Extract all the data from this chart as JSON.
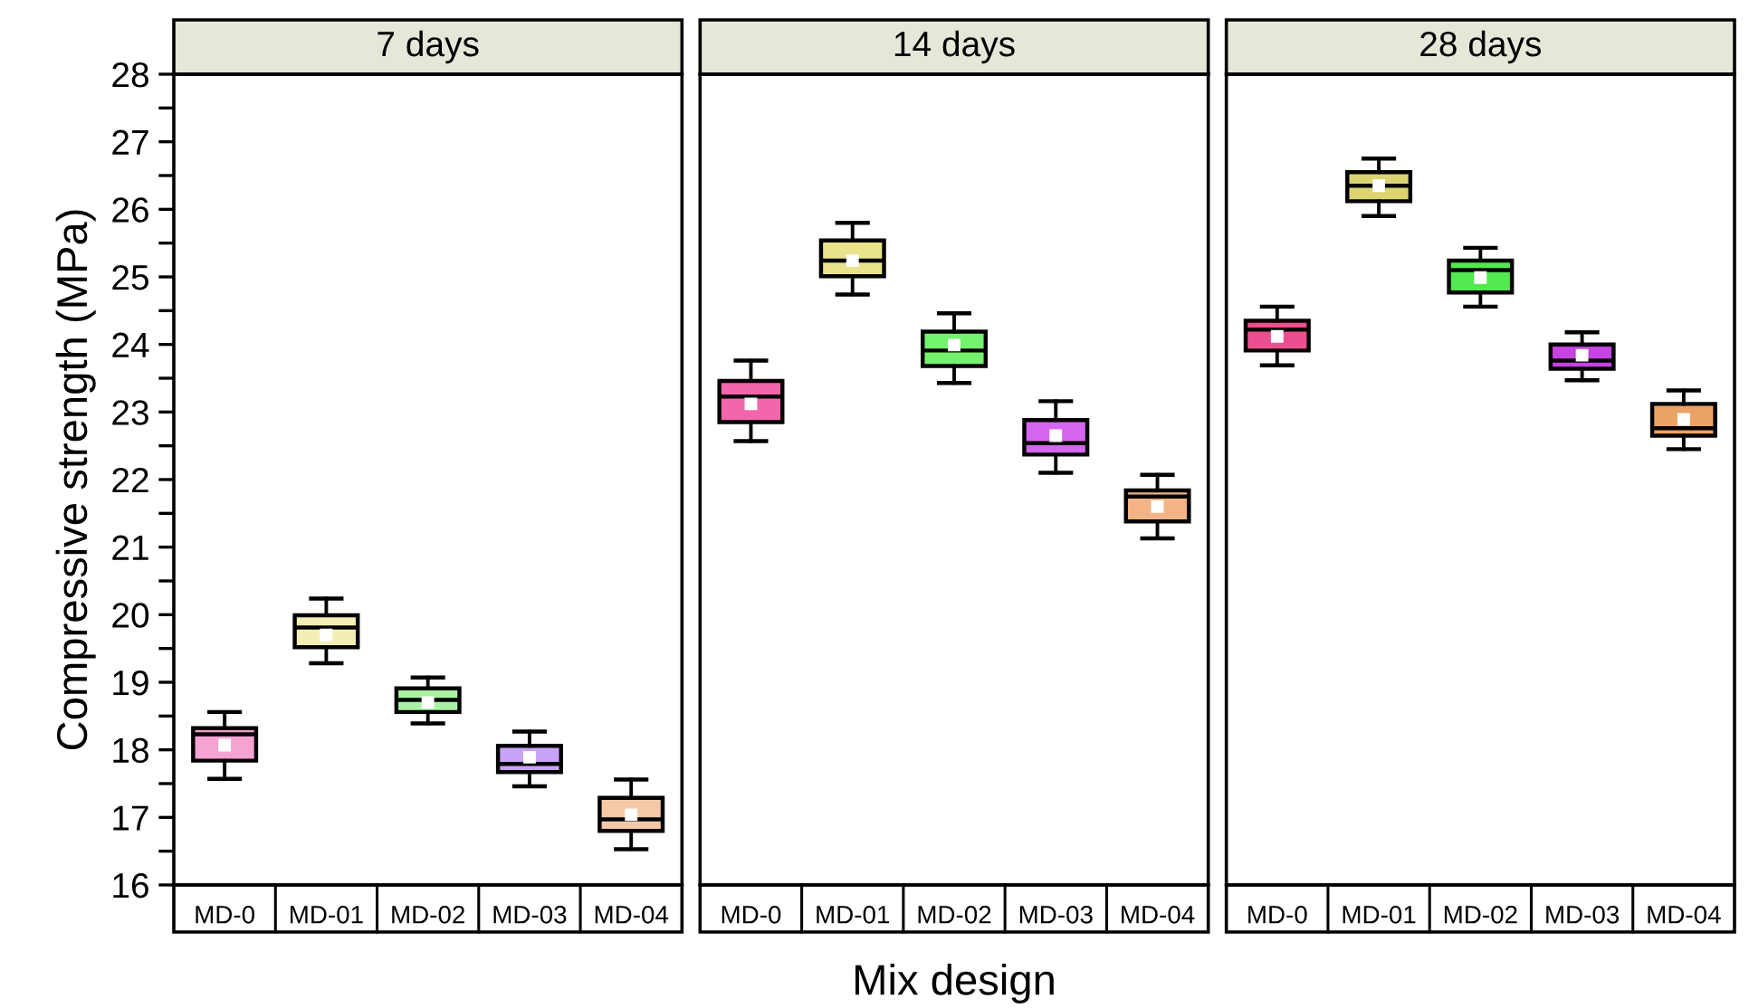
{
  "chart_data": [
    {
      "type": "box",
      "title": "7 days",
      "ylabel": "Compressive strength (MPa)",
      "categories": [
        "MD-0",
        "MD-01",
        "MD-02",
        "MD-03",
        "MD-04"
      ],
      "colors": [
        "#f5a3d2",
        "#f3efb4",
        "#a9f2a3",
        "#c9a3f5",
        "#f5c9a8"
      ],
      "boxes": [
        {
          "low": 17.57,
          "q1": 17.84,
          "median": 18.23,
          "q3": 18.32,
          "high": 18.56,
          "mean": 18.07
        },
        {
          "low": 19.28,
          "q1": 19.52,
          "median": 19.81,
          "q3": 19.99,
          "high": 20.24,
          "mean": 19.7
        },
        {
          "low": 18.39,
          "q1": 18.56,
          "median": 18.74,
          "q3": 18.91,
          "high": 19.07,
          "mean": 18.7
        },
        {
          "low": 17.46,
          "q1": 17.67,
          "median": 17.79,
          "q3": 18.06,
          "high": 18.27,
          "mean": 17.89
        },
        {
          "low": 16.53,
          "q1": 16.8,
          "median": 16.97,
          "q3": 17.29,
          "high": 17.56,
          "mean": 17.04
        }
      ],
      "ylim": [
        16,
        28
      ],
      "yticks": [
        16,
        {
          "value": 16.5,
          "label": null
        },
        17,
        {
          "value": 17.5,
          "label": null
        },
        18,
        {
          "value": 18.5,
          "label": null
        },
        19,
        {
          "value": 19.5,
          "label": null
        },
        20,
        {
          "value": 20.5,
          "label": null
        },
        21,
        {
          "value": 21.5,
          "label": null
        },
        22,
        {
          "value": 22.5,
          "label": null
        },
        23,
        {
          "value": 23.5,
          "label": null
        },
        24,
        {
          "value": 24.5,
          "label": null
        },
        25,
        {
          "value": 25.5,
          "label": null
        },
        26,
        {
          "value": 26.5,
          "label": null
        },
        27,
        {
          "value": 27.5,
          "label": null
        },
        28
      ]
    },
    {
      "type": "box",
      "title": "14 days",
      "xlabel": "Mix design",
      "categories": [
        "MD-0",
        "MD-01",
        "MD-02",
        "MD-03",
        "MD-04"
      ],
      "colors": [
        "#f266ad",
        "#e9e38c",
        "#73f26e",
        "#d466ef",
        "#f2b386"
      ],
      "boxes": [
        {
          "low": 22.57,
          "q1": 22.85,
          "median": 23.23,
          "q3": 23.46,
          "high": 23.76,
          "mean": 23.12
        },
        {
          "low": 24.74,
          "q1": 25.01,
          "median": 25.24,
          "q3": 25.54,
          "high": 25.8,
          "mean": 25.24
        },
        {
          "low": 23.43,
          "q1": 23.68,
          "median": 23.91,
          "q3": 24.19,
          "high": 24.46,
          "mean": 23.99
        },
        {
          "low": 22.1,
          "q1": 22.37,
          "median": 22.54,
          "q3": 22.88,
          "high": 23.16,
          "mean": 22.65
        },
        {
          "low": 21.13,
          "q1": 21.38,
          "median": 21.75,
          "q3": 21.84,
          "high": 22.07,
          "mean": 21.6
        }
      ],
      "ylim": [
        16,
        28
      ],
      "tick_labels": "x"
    },
    {
      "type": "box",
      "title": "28 days",
      "categories": [
        "MD-0",
        "MD-01",
        "MD-02",
        "MD-03",
        "MD-04"
      ],
      "colors": [
        "#ec4f8f",
        "#dcd471",
        "#52e84f",
        "#c543e0",
        "#eba265"
      ],
      "boxes": [
        {
          "low": 23.69,
          "q1": 23.91,
          "median": 24.22,
          "q3": 24.35,
          "high": 24.56,
          "mean": 24.12
        },
        {
          "low": 25.9,
          "q1": 26.12,
          "median": 26.35,
          "q3": 26.55,
          "high": 26.75,
          "mean": 26.35
        },
        {
          "low": 24.56,
          "q1": 24.77,
          "median": 25.1,
          "q3": 25.24,
          "high": 25.43,
          "mean": 24.99
        },
        {
          "low": 23.47,
          "q1": 23.64,
          "median": 23.76,
          "q3": 24.0,
          "high": 24.18,
          "mean": 23.84
        },
        {
          "low": 22.45,
          "q1": 22.65,
          "median": 22.76,
          "q3": 23.12,
          "high": 23.32,
          "mean": 22.89
        }
      ],
      "ylim": [
        16,
        28
      ],
      "tick_labels": "x"
    }
  ]
}
